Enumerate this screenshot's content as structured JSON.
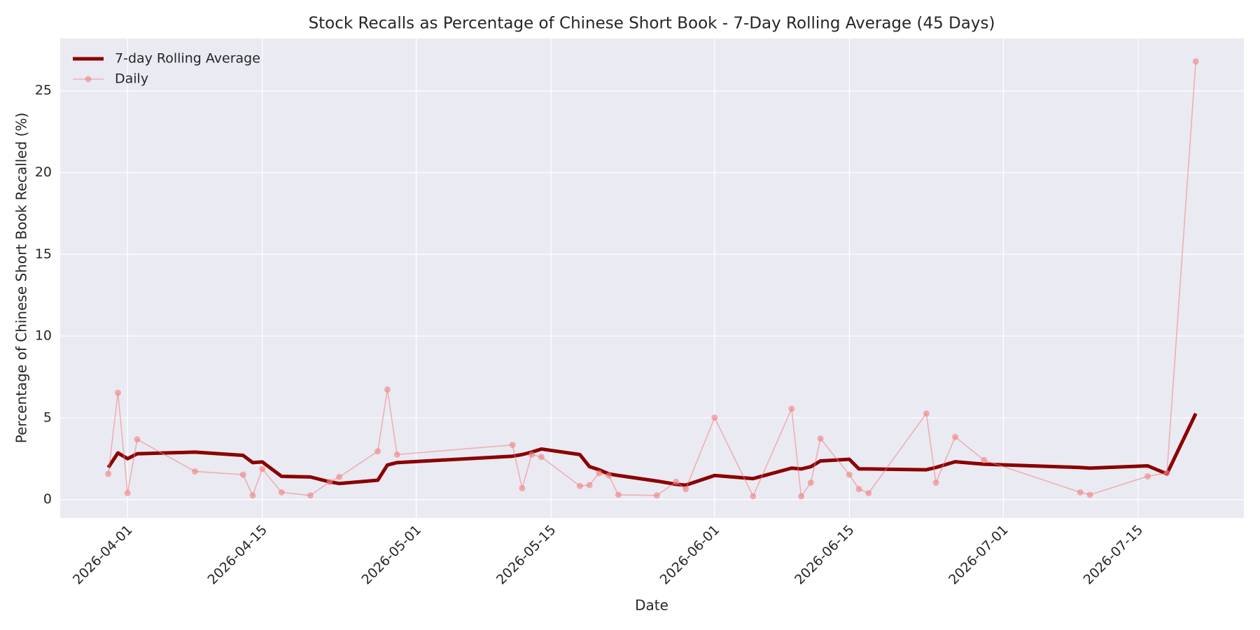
{
  "chart_data": {
    "type": "line",
    "title": "Stock Recalls as Percentage of Chinese Short Book - 7-Day Rolling Average (45 Days)",
    "x_label": "Date",
    "y_label": "Percentage of Chinese Short Book Recalled (%)",
    "x": [
      "2026-03-30",
      "2026-03-31",
      "2026-04-01",
      "2026-04-02",
      "2026-04-08",
      "2026-04-13",
      "2026-04-14",
      "2026-04-15",
      "2026-04-17",
      "2026-04-20",
      "2026-04-22",
      "2026-04-23",
      "2026-04-27",
      "2026-04-28",
      "2026-04-29",
      "2026-05-11",
      "2026-05-12",
      "2026-05-13",
      "2026-05-14",
      "2026-05-18",
      "2026-05-19",
      "2026-05-20",
      "2026-05-21",
      "2026-05-22",
      "2026-05-26",
      "2026-05-28",
      "2026-05-29",
      "2026-06-01",
      "2026-06-05",
      "2026-06-09",
      "2026-06-10",
      "2026-06-11",
      "2026-06-12",
      "2026-06-15",
      "2026-06-16",
      "2026-06-17",
      "2026-06-23",
      "2026-06-24",
      "2026-06-26",
      "2026-06-29",
      "2026-07-09",
      "2026-07-10",
      "2026-07-16",
      "2026-07-18",
      "2026-07-21"
    ],
    "series": [
      {
        "name": "7-day Rolling Average",
        "color": "#8b0000",
        "line_width": 5,
        "markers": false,
        "values": [
          1.96,
          2.85,
          2.5,
          2.8,
          2.9,
          2.7,
          2.26,
          2.3,
          1.42,
          1.38,
          1.08,
          0.98,
          1.18,
          2.11,
          2.26,
          2.65,
          2.75,
          2.9,
          3.09,
          2.75,
          2.01,
          1.82,
          1.57,
          1.47,
          1.13,
          0.93,
          0.88,
          1.47,
          1.28,
          1.92,
          1.87,
          2.01,
          2.36,
          2.46,
          1.87,
          1.87,
          1.82,
          1.96,
          2.31,
          2.16,
          1.96,
          1.92,
          2.06,
          1.57,
          5.26
        ]
      },
      {
        "name": "Daily",
        "color": "#f08080",
        "line_width": 1.6,
        "markers": true,
        "values": [
          1.57,
          6.53,
          0.39,
          3.68,
          1.72,
          1.52,
          0.25,
          1.87,
          0.44,
          0.25,
          1.08,
          1.38,
          2.95,
          6.73,
          2.75,
          3.34,
          0.69,
          2.75,
          2.6,
          0.83,
          0.88,
          1.62,
          1.47,
          0.29,
          0.25,
          1.08,
          0.64,
          5.01,
          0.2,
          5.55,
          0.2,
          1.03,
          3.73,
          1.52,
          0.64,
          0.39,
          5.26,
          1.03,
          3.83,
          2.41,
          0.44,
          0.29,
          1.42,
          1.62,
          26.8
        ]
      }
    ],
    "xlim": [
      "2026-03-25",
      "2026-07-26"
    ],
    "xticks": [
      "2026-04-01",
      "2026-04-15",
      "2026-05-01",
      "2026-05-15",
      "2026-06-01",
      "2026-06-15",
      "2026-07-01",
      "2026-07-15"
    ],
    "ylim": [
      -1.13,
      28.2
    ],
    "yticks": [
      0,
      5,
      10,
      15,
      20,
      25
    ],
    "grid": true,
    "legend_position": "upper-left"
  }
}
